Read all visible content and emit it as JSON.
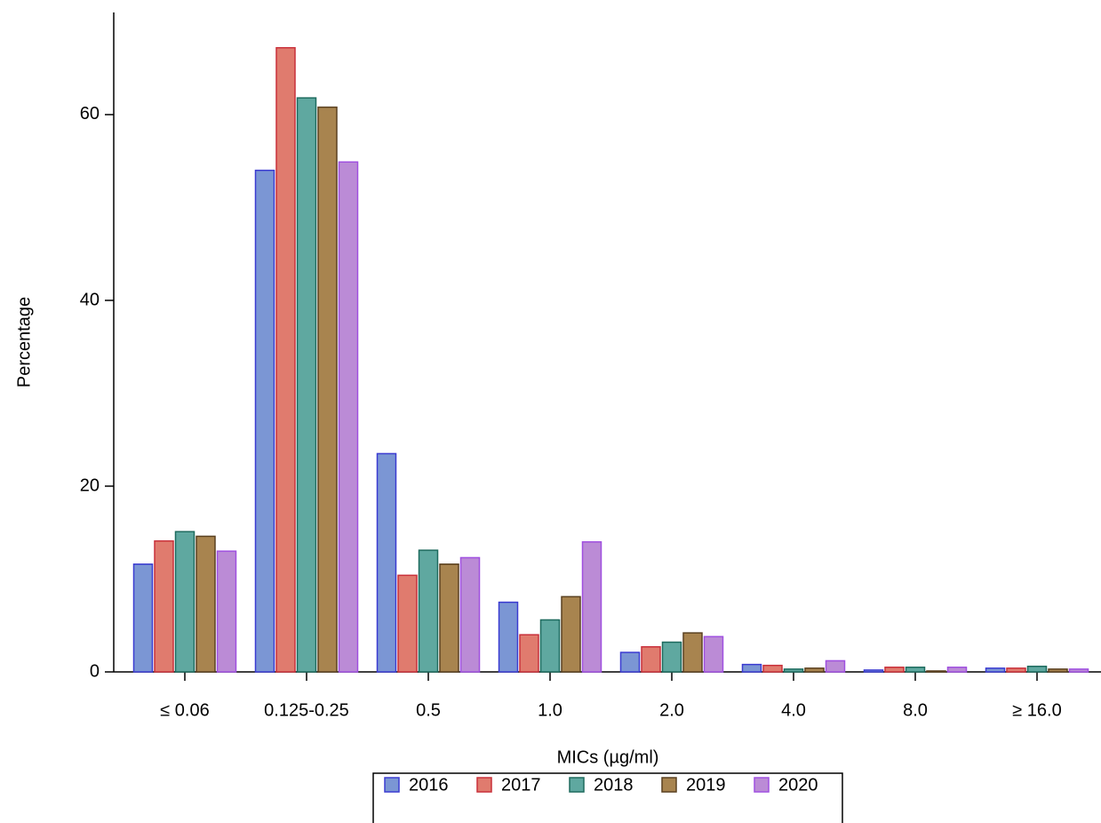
{
  "chart_data": {
    "type": "bar",
    "x_label": "MICs (µg/ml)",
    "y_label": "Percentage",
    "categories": [
      "≤ 0.06",
      "0.125-0.25",
      "0.5",
      "1.0",
      "2.0",
      "4.0",
      "8.0",
      "≥ 16.0"
    ],
    "series": [
      {
        "name": "2016",
        "color": "#7b96d4",
        "edgecolor": "#3b3bd1",
        "values": [
          11.6,
          54.0,
          23.5,
          7.5,
          2.1,
          0.8,
          0.2,
          0.4
        ]
      },
      {
        "name": "2017",
        "color": "#e07b6e",
        "edgecolor": "#c9303a",
        "values": [
          14.1,
          67.2,
          10.4,
          4.0,
          2.7,
          0.7,
          0.5,
          0.4
        ]
      },
      {
        "name": "2018",
        "color": "#5fa8a0",
        "edgecolor": "#1e6b5e",
        "values": [
          15.1,
          61.8,
          13.1,
          5.6,
          3.2,
          0.3,
          0.5,
          0.6
        ]
      },
      {
        "name": "2019",
        "color": "#a8844f",
        "edgecolor": "#5a4020",
        "values": [
          14.6,
          60.8,
          11.6,
          8.1,
          4.2,
          0.4,
          0.1,
          0.3
        ]
      },
      {
        "name": "2020",
        "color": "#bb8bd6",
        "edgecolor": "#a050e0",
        "values": [
          13.0,
          54.9,
          12.3,
          14.0,
          3.8,
          1.2,
          0.5,
          0.3
        ]
      }
    ],
    "ylim": [
      0,
      71
    ],
    "yticks": [
      0,
      20,
      40,
      60
    ],
    "grid": false,
    "legend": "bottom"
  }
}
